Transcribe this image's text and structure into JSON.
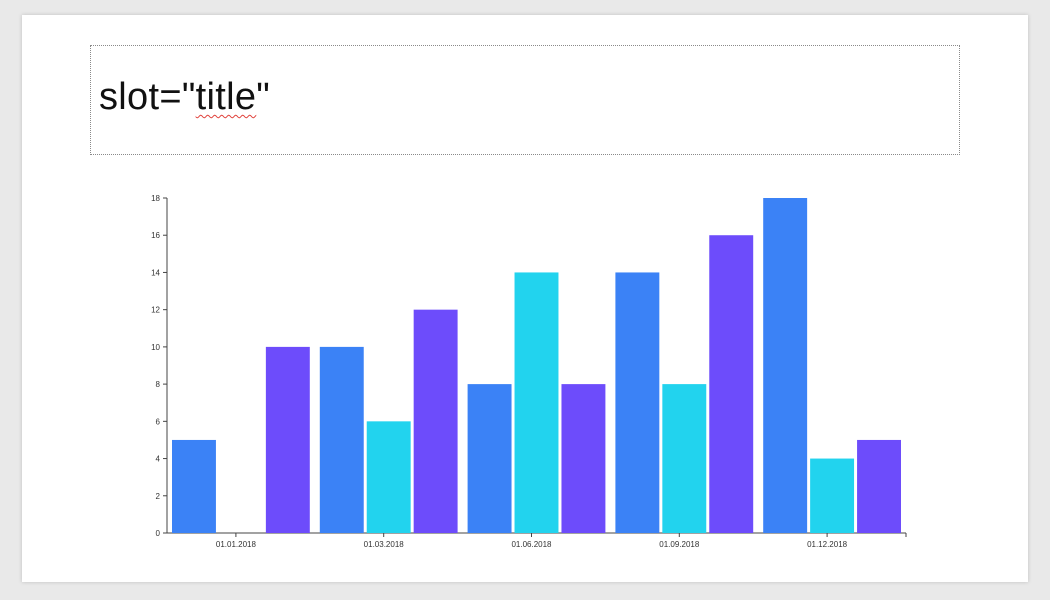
{
  "slide": {
    "title_prefix": "slot=\"",
    "title_word": "title",
    "title_suffix": "\""
  },
  "chart_data": {
    "type": "bar",
    "categories": [
      "01.01.2018",
      "01.03.2018",
      "01.06.2018",
      "01.09.2018",
      "01.12.2018"
    ],
    "series": [
      {
        "values": [
          5,
          10,
          8,
          14,
          18
        ],
        "color": "#3b82f6"
      },
      {
        "values": [
          0,
          6,
          14,
          8,
          4
        ],
        "color": "#22d3ee"
      },
      {
        "values": [
          10,
          12,
          8,
          16,
          5
        ],
        "color": "#6d4cfb"
      }
    ],
    "yticks": [
      0,
      2,
      4,
      6,
      8,
      10,
      12,
      14,
      16,
      18
    ],
    "ylim": [
      0,
      18
    ],
    "title": "",
    "xlabel": "",
    "ylabel": "",
    "grid": false,
    "legend": "none"
  }
}
